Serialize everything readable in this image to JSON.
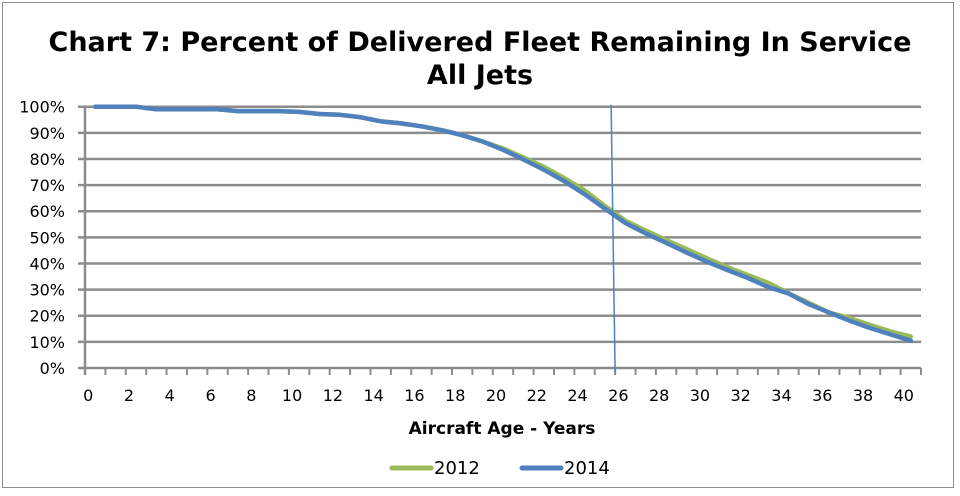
{
  "chart_data": {
    "type": "line",
    "title": "Chart 7: Percent of Delivered Fleet Remaining In Service",
    "subtitle": "All Jets",
    "xlabel": "Aircraft Age - Years",
    "ylabel": "",
    "x": [
      0,
      1,
      2,
      3,
      4,
      5,
      6,
      7,
      8,
      9,
      10,
      11,
      12,
      13,
      14,
      15,
      16,
      17,
      18,
      19,
      20,
      21,
      22,
      23,
      24,
      25,
      26,
      27,
      28,
      29,
      30,
      31,
      32,
      33,
      34,
      35,
      36,
      37,
      38,
      39,
      40
    ],
    "x_tick_labels": [
      "0",
      "2",
      "4",
      "6",
      "8",
      "10",
      "12",
      "14",
      "16",
      "18",
      "20",
      "22",
      "24",
      "26",
      "28",
      "30",
      "32",
      "34",
      "36",
      "38",
      "40"
    ],
    "y_tick_labels": [
      "0%",
      "10%",
      "20%",
      "30%",
      "40%",
      "50%",
      "60%",
      "70%",
      "80%",
      "90%",
      "100%"
    ],
    "ylim": [
      0,
      100
    ],
    "y_unit": "percent",
    "grid": "horizontal",
    "legend_position": "bottom",
    "series": [
      {
        "name": "2012",
        "color": "#9bbb59",
        "values": [
          100,
          100,
          100,
          99,
          99,
          99,
          99,
          98.3,
          98.3,
          98.3,
          98,
          97.2,
          96.9,
          96,
          94.4,
          93.6,
          92.5,
          91,
          89.1,
          86.7,
          84,
          80.6,
          77,
          72.7,
          68,
          62,
          56.4,
          52.6,
          49,
          45.5,
          42,
          38.6,
          35.6,
          32.6,
          28.6,
          24.9,
          21.2,
          19.1,
          16.5,
          14,
          12
        ]
      },
      {
        "name": "2014",
        "color": "#4f81bd",
        "values": [
          100,
          100,
          100,
          99,
          99,
          99,
          99,
          98.3,
          98.3,
          98.3,
          98,
          97.2,
          96.9,
          96,
          94.4,
          93.6,
          92.5,
          91,
          89.1,
          86.7,
          83.5,
          79.8,
          75.9,
          71.5,
          66.5,
          61,
          55.5,
          51.5,
          47.9,
          44.2,
          40.7,
          37.5,
          34.5,
          31,
          28.5,
          24.4,
          21.2,
          18.1,
          15.3,
          12.9,
          10.5
        ]
      }
    ],
    "annotations": [
      {
        "type": "vertical-line",
        "x": 25.4,
        "color": "#4f81bd"
      }
    ]
  }
}
